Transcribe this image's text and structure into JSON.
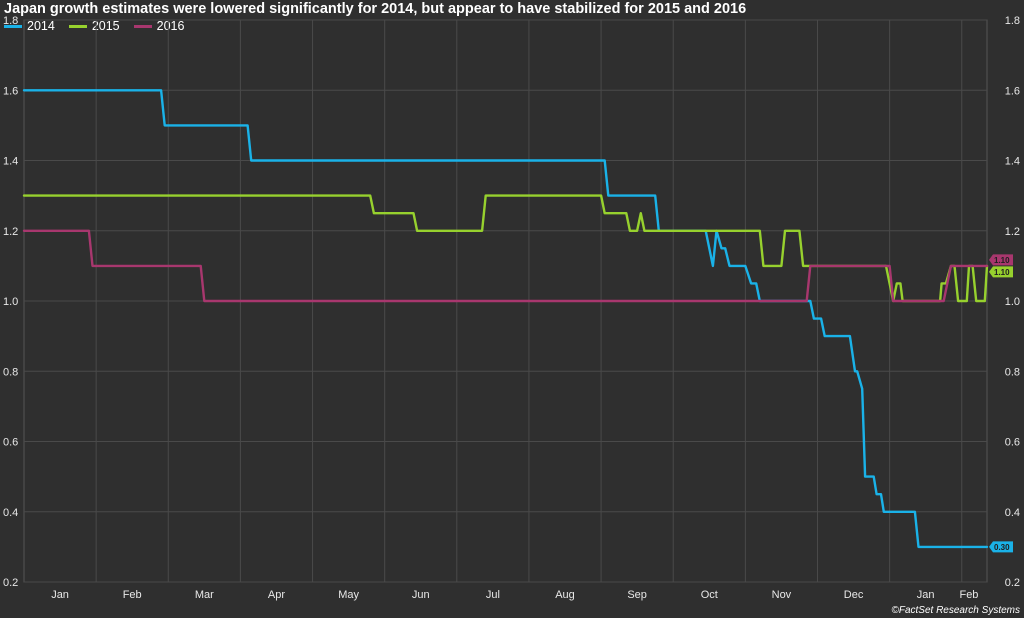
{
  "chart_data": {
    "type": "line",
    "title": "Japan growth estimates were lowered significantly for 2014, but appear to have stabilized for 2015 and 2016",
    "credit": "©FactSet Research Systems",
    "xlabel": "",
    "ylabel": "",
    "ylim": [
      0.2,
      1.8
    ],
    "yticks": [
      "0.2",
      "0.4",
      "0.6",
      "0.8",
      "1.0",
      "1.2",
      "1.4",
      "1.6",
      "1.8"
    ],
    "xlim": [
      0.0,
      13.35
    ],
    "xticks": [
      {
        "label": "Jan",
        "x": 0.5
      },
      {
        "label": "Feb",
        "x": 1.5
      },
      {
        "label": "Mar",
        "x": 2.5
      },
      {
        "label": "Apr",
        "x": 3.5
      },
      {
        "label": "May",
        "x": 4.5
      },
      {
        "label": "Jun",
        "x": 5.5
      },
      {
        "label": "Jul",
        "x": 6.5
      },
      {
        "label": "Aug",
        "x": 7.5
      },
      {
        "label": "Sep",
        "x": 8.5
      },
      {
        "label": "Oct",
        "x": 9.5
      },
      {
        "label": "Nov",
        "x": 10.5
      },
      {
        "label": "Dec",
        "x": 11.5
      },
      {
        "label": "Jan",
        "x": 12.5
      },
      {
        "label": "Feb",
        "x": 13.1
      }
    ],
    "grid": true,
    "legend_position": "top-left",
    "series": [
      {
        "name": "2014",
        "color": "#1ab2e8",
        "end_label": "0.30",
        "points": [
          [
            0.0,
            1.6
          ],
          [
            1.9,
            1.6
          ],
          [
            1.95,
            1.5
          ],
          [
            3.1,
            1.5
          ],
          [
            3.15,
            1.4
          ],
          [
            8.05,
            1.4
          ],
          [
            8.1,
            1.3
          ],
          [
            8.75,
            1.3
          ],
          [
            8.8,
            1.2
          ],
          [
            9.45,
            1.2
          ],
          [
            9.55,
            1.1
          ],
          [
            9.6,
            1.2
          ],
          [
            9.67,
            1.15
          ],
          [
            9.72,
            1.15
          ],
          [
            9.78,
            1.1
          ],
          [
            10.0,
            1.1
          ],
          [
            10.08,
            1.05
          ],
          [
            10.15,
            1.05
          ],
          [
            10.2,
            1.0
          ],
          [
            10.9,
            1.0
          ],
          [
            10.95,
            0.95
          ],
          [
            11.05,
            0.95
          ],
          [
            11.1,
            0.9
          ],
          [
            11.45,
            0.9
          ],
          [
            11.52,
            0.8
          ],
          [
            11.55,
            0.8
          ],
          [
            11.62,
            0.75
          ],
          [
            11.66,
            0.5
          ],
          [
            11.78,
            0.5
          ],
          [
            11.82,
            0.45
          ],
          [
            11.88,
            0.45
          ],
          [
            11.92,
            0.4
          ],
          [
            12.35,
            0.4
          ],
          [
            12.4,
            0.3
          ],
          [
            13.35,
            0.3
          ]
        ]
      },
      {
        "name": "2015",
        "color": "#97d12e",
        "end_label": "1.10",
        "points": [
          [
            0.0,
            1.3
          ],
          [
            4.8,
            1.3
          ],
          [
            4.85,
            1.25
          ],
          [
            5.4,
            1.25
          ],
          [
            5.45,
            1.2
          ],
          [
            6.35,
            1.2
          ],
          [
            6.4,
            1.3
          ],
          [
            8.0,
            1.3
          ],
          [
            8.05,
            1.25
          ],
          [
            8.35,
            1.25
          ],
          [
            8.4,
            1.2
          ],
          [
            8.5,
            1.2
          ],
          [
            8.55,
            1.25
          ],
          [
            8.6,
            1.2
          ],
          [
            10.2,
            1.2
          ],
          [
            10.25,
            1.1
          ],
          [
            10.5,
            1.1
          ],
          [
            10.55,
            1.2
          ],
          [
            10.75,
            1.2
          ],
          [
            10.8,
            1.1
          ],
          [
            11.95,
            1.1
          ],
          [
            12.05,
            1.0
          ],
          [
            12.1,
            1.05
          ],
          [
            12.15,
            1.05
          ],
          [
            12.18,
            1.0
          ],
          [
            12.7,
            1.0
          ],
          [
            12.72,
            1.05
          ],
          [
            12.78,
            1.05
          ],
          [
            12.85,
            1.1
          ],
          [
            12.9,
            1.1
          ],
          [
            12.95,
            1.0
          ],
          [
            13.07,
            1.0
          ],
          [
            13.1,
            1.1
          ],
          [
            13.15,
            1.1
          ],
          [
            13.2,
            1.0
          ],
          [
            13.32,
            1.0
          ],
          [
            13.35,
            1.1
          ]
        ]
      },
      {
        "name": "2016",
        "color": "#a8376e",
        "end_label": "1.10",
        "points": [
          [
            0.0,
            1.2
          ],
          [
            0.9,
            1.2
          ],
          [
            0.95,
            1.1
          ],
          [
            2.45,
            1.1
          ],
          [
            2.5,
            1.0
          ],
          [
            10.85,
            1.0
          ],
          [
            10.9,
            1.1
          ],
          [
            12.0,
            1.1
          ],
          [
            12.05,
            1.0
          ],
          [
            12.75,
            1.0
          ],
          [
            12.85,
            1.1
          ],
          [
            13.35,
            1.1
          ]
        ]
      }
    ]
  }
}
